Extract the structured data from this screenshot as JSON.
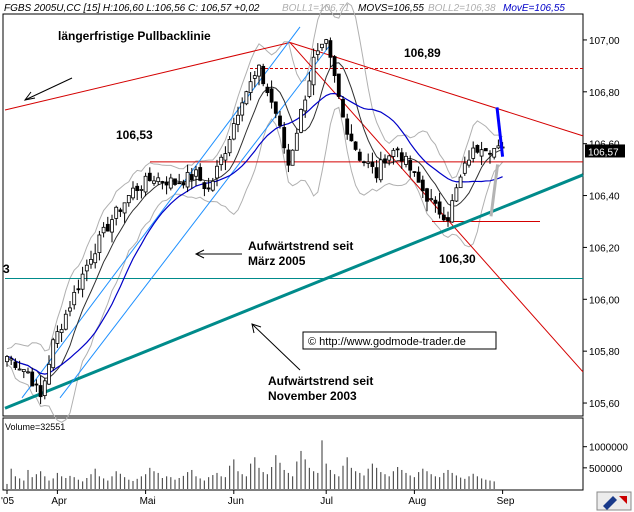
{
  "chart_data": {
    "type": "candlestick",
    "header": {
      "symbol": "FGBS 2005U,CC [15] H:106,60 L:106,56 C: 106,57 +0,02",
      "boll1": "BOLL1=106,71",
      "movs": "MOVS=106,55",
      "boll2": "BOLL2=106,38",
      "move": "MovE=106,55"
    },
    "y_axis": {
      "min": 105.55,
      "max": 107.1,
      "ticks": [
        "107,00",
        "106,80",
        "106,60",
        "106,40",
        "106,20",
        "106,00",
        "105,80",
        "105,60"
      ],
      "tick_values": [
        107.0,
        106.8,
        106.6,
        106.4,
        106.2,
        106.0,
        105.8,
        105.6
      ]
    },
    "x_axis": {
      "labels": [
        "'05",
        "Apr",
        "Mai",
        "Jun",
        "Jul",
        "Aug",
        "Sep"
      ],
      "label_index": [
        0,
        12,
        33,
        54,
        76,
        97,
        118
      ]
    },
    "last_price_label": "106,57",
    "last_price": 106.57,
    "volume": {
      "label": "Volume=32551",
      "ticks": [
        "1000000",
        "500000"
      ],
      "tick_values": [
        1000000,
        500000
      ],
      "max": 1300000,
      "values": [
        120000,
        480000,
        300000,
        250000,
        200000,
        450000,
        280000,
        350000,
        420000,
        300000,
        200000,
        250000,
        380000,
        300000,
        260000,
        310000,
        280000,
        220000,
        180000,
        260000,
        350000,
        480000,
        300000,
        250000,
        200000,
        300000,
        420000,
        360000,
        280000,
        220000,
        190000,
        240000,
        300000,
        350000,
        500000,
        420000,
        380000,
        260000,
        300000,
        280000,
        220000,
        260000,
        310000,
        400000,
        450000,
        300000,
        250000,
        200000,
        280000,
        330000,
        380000,
        300000,
        280000,
        550000,
        700000,
        420000,
        350000,
        300000,
        600000,
        750000,
        500000,
        400000,
        350000,
        520000,
        800000,
        620000,
        450000,
        380000,
        300000,
        650000,
        900000,
        700000,
        500000,
        420000,
        380000,
        1150000,
        600000,
        450000,
        350000,
        300000,
        550000,
        750000,
        500000,
        420000,
        380000,
        320000,
        480000,
        600000,
        500000,
        400000,
        350000,
        300000,
        420000,
        520000,
        450000,
        380000,
        320000,
        280000,
        400000,
        480000,
        420000,
        350000,
        300000,
        280000,
        380000,
        450000,
        380000,
        320000,
        270000,
        240000,
        300000,
        360000,
        300000,
        250000,
        220000,
        200000,
        180000
      ]
    },
    "annotations": {
      "pullback": "längerfristige Pullbacklinie",
      "level_10689": "106,89",
      "level_10653": "106,53",
      "level_10630": "106,30",
      "trend_maerz_1": "Aufwärtstrend seit",
      "trend_maerz_2": "März 2005",
      "trend_nov_1": "Aufwärtstrend seit",
      "trend_nov_2": "November 2003",
      "watermark": "© http://www.godmode-trader.de",
      "edge_label": "3"
    },
    "levels": {
      "resistance_high": 106.89,
      "support_red": 106.53,
      "support_low": 106.3,
      "cyan_horizontal": 106.08
    },
    "colors": {
      "candle": "#000000",
      "boll_band": "#b0b0b0",
      "moving_avg_slow": "#0000c8",
      "moving_avg_fast": "#303030",
      "resistance": "#d40000",
      "trend_long": "#008b8b",
      "trend_channel": "#1e90ff",
      "projection_up": "#0000ff",
      "projection_down": "#b4b4b4"
    },
    "candles": []
  }
}
